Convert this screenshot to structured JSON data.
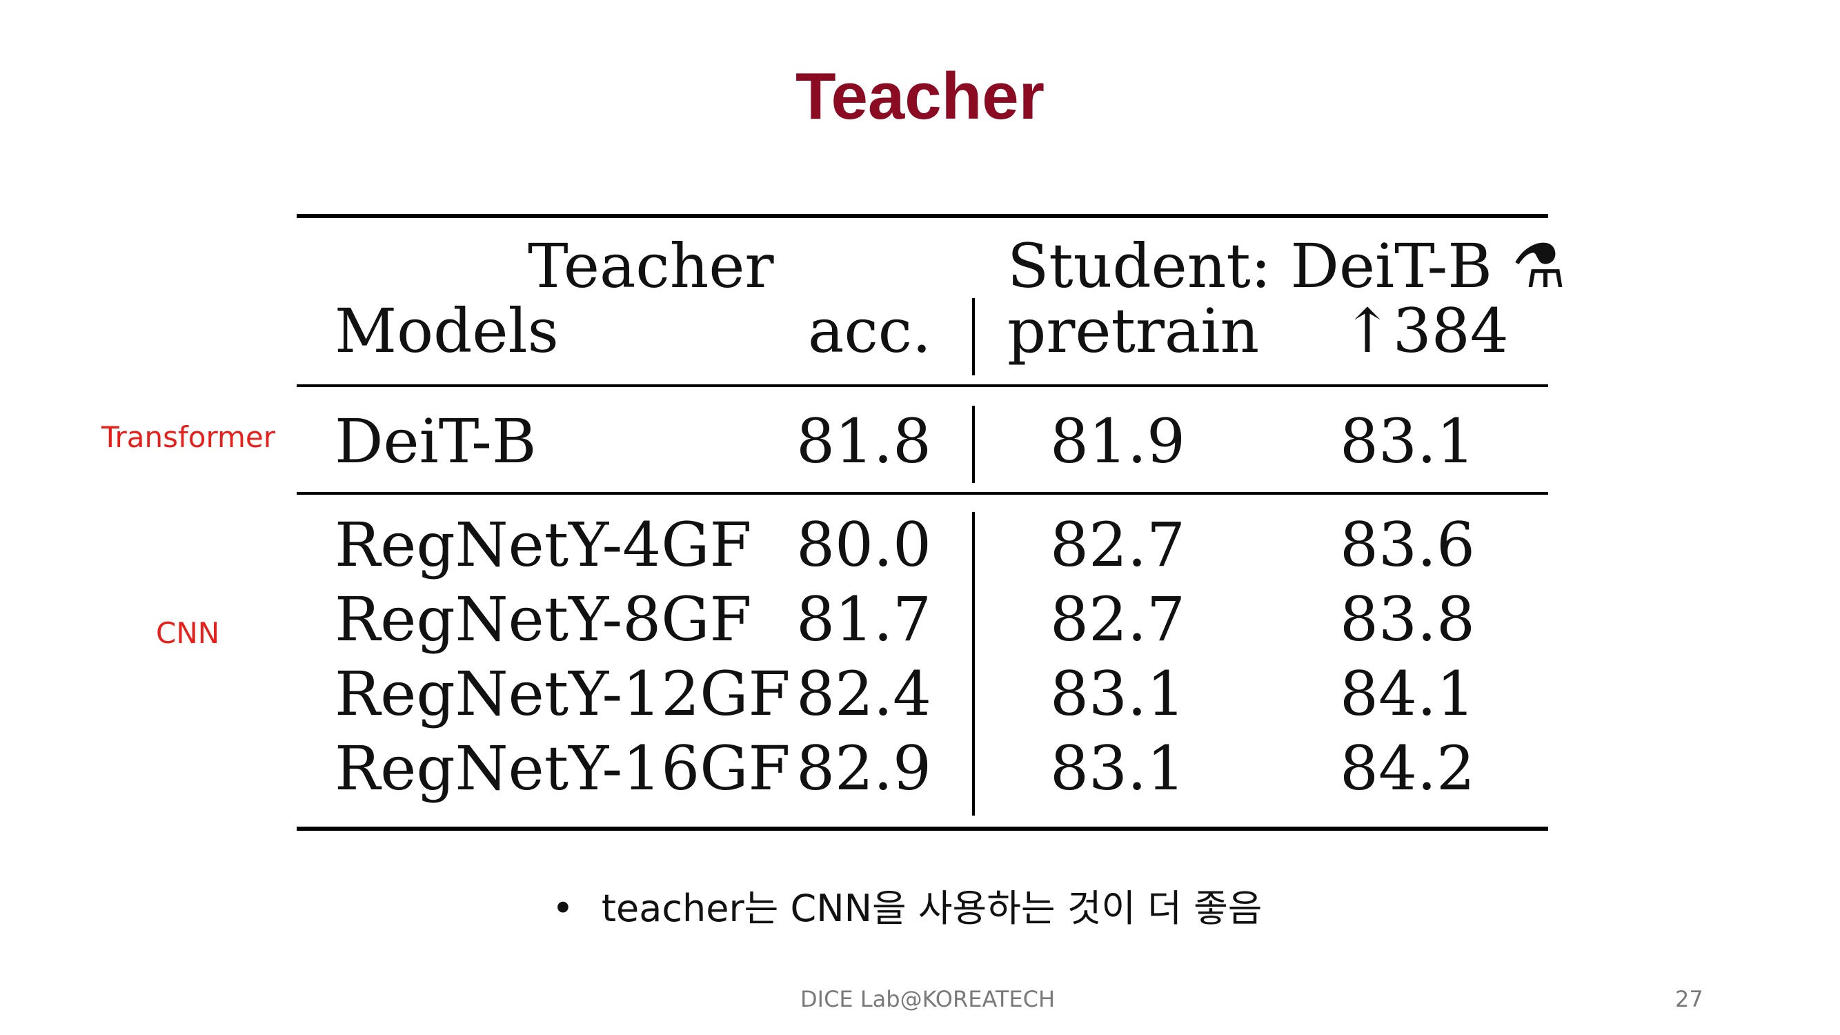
{
  "slide": {
    "title": "Teacher",
    "bullet": "teacher는 CNN을 사용하는 것이 더 좋음",
    "bullet_marker": "•",
    "footer": "DICE Lab@KOREATECH",
    "page_number": "27"
  },
  "side_labels": {
    "transformer": "Transformer",
    "cnn": "CNN"
  },
  "table": {
    "header": {
      "teacher_group": "Teacher",
      "student_group": "Student: DeiT-B ⚗",
      "models": "Models",
      "acc": "acc.",
      "pretrain": "pretrain",
      "res384": "↑384"
    },
    "transformer_rows": [
      {
        "model": "DeiT-B",
        "acc": "81.8",
        "pretrain": "81.9",
        "res384": "83.1"
      }
    ],
    "cnn_rows": [
      {
        "model": "RegNetY-4GF",
        "acc": "80.0",
        "pretrain": "82.7",
        "res384": "83.6"
      },
      {
        "model": "RegNetY-8GF",
        "acc": "81.7",
        "pretrain": "82.7",
        "res384": "83.8"
      },
      {
        "model": "RegNetY-12GF",
        "acc": "82.4",
        "pretrain": "83.1",
        "res384": "84.1"
      },
      {
        "model": "RegNetY-16GF",
        "acc": "82.9",
        "pretrain": "83.1",
        "res384": "84.2"
      }
    ]
  },
  "colors": {
    "title": "#8b0b23",
    "side_label": "#e8201c",
    "footer": "#7a7a7a"
  }
}
